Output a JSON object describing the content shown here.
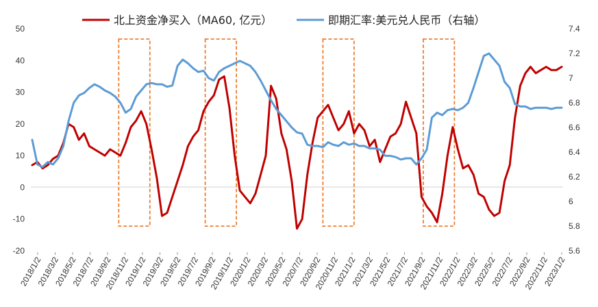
{
  "chart_data": {
    "type": "line",
    "legend": {
      "placement": "top",
      "items": [
        {
          "label": "北上资金净买入（MA60, 亿元）",
          "color": "#c00000"
        },
        {
          "label": "即期汇率:美元兑人民币（右轴）",
          "color": "#5b9bd5"
        }
      ]
    },
    "y_left": {
      "min": -20,
      "max": 50,
      "ticks": [
        "50",
        "40",
        "30",
        "20",
        "10",
        "0",
        "-10",
        "-20"
      ]
    },
    "y_right": {
      "min": 5.6,
      "max": 7.4,
      "ticks": [
        "7.4",
        "7.2",
        "7",
        "6.8",
        "6.6",
        "6.4",
        "6.2",
        "6",
        "5.8",
        "5.6"
      ]
    },
    "x_ticks": [
      "2018/1/2",
      "2018/3/2",
      "2018/5/2",
      "2018/7/2",
      "2018/9/2",
      "2018/11/2",
      "2019/1/2",
      "2019/3/2",
      "2019/5/2",
      "2019/7/2",
      "2019/9/2",
      "2019/11/2",
      "2020/1/2",
      "2020/3/2",
      "2020/5/2",
      "2020/7/2",
      "2020/9/2",
      "2020/11/2",
      "2021/1/2",
      "2021/3/2",
      "2021/5/2",
      "2021/7/2",
      "2021/9/2",
      "2021/11/2",
      "2022/1/2",
      "2022/3/2",
      "2022/5/2",
      "2022/7/2",
      "2022/9/2",
      "2022/11/2",
      "2023/1/2"
    ],
    "series": [
      {
        "name": "北上资金净买入（MA60, 亿元）",
        "axis": "left",
        "color": "#c00000",
        "x": [
          0,
          0.3,
          0.6,
          0.9,
          1.2,
          1.5,
          1.8,
          2.1,
          2.4,
          2.7,
          3.0,
          3.3,
          3.6,
          3.9,
          4.2,
          4.5,
          4.8,
          5.1,
          5.4,
          5.7,
          6.0,
          6.3,
          6.6,
          6.9,
          7.2,
          7.5,
          7.8,
          8.1,
          8.4,
          8.7,
          9.0,
          9.3,
          9.6,
          9.9,
          10.2,
          10.5,
          10.8,
          11.1,
          11.4,
          11.7,
          12.0,
          12.3,
          12.6,
          12.9,
          13.2,
          13.5,
          13.8,
          14.1,
          14.4,
          14.7,
          15.0,
          15.3,
          15.6,
          15.9,
          16.2,
          16.5,
          16.8,
          17.1,
          17.4,
          17.7,
          18.0,
          18.3,
          18.6,
          18.9,
          19.2,
          19.5,
          19.8,
          20.1,
          20.4,
          20.7,
          21.0,
          21.3,
          21.6,
          21.9,
          22.2,
          22.5,
          22.8,
          23.1,
          23.4,
          23.7,
          24.0,
          24.3,
          24.6,
          24.9,
          25.2,
          25.5,
          25.8,
          26.1,
          26.4,
          26.7,
          27.0,
          27.3,
          27.6,
          27.9,
          28.2,
          28.5,
          28.8,
          29.1,
          29.4,
          29.7,
          30.0,
          30.3,
          30.6
        ],
        "values": [
          7,
          8,
          6,
          7,
          9,
          10,
          14,
          20,
          19,
          15,
          17,
          13,
          12,
          11,
          10,
          12,
          11,
          10,
          14,
          19,
          21,
          24,
          20,
          12,
          3,
          -9,
          -8,
          -3,
          2,
          7,
          13,
          16,
          18,
          24,
          27,
          29,
          34,
          35,
          25,
          10,
          -1,
          -3,
          -5,
          -2,
          4,
          10,
          32,
          28,
          17,
          12,
          2,
          -13,
          -10,
          4,
          14,
          22,
          24,
          26,
          22,
          18,
          20,
          24,
          17,
          20,
          18,
          13,
          15,
          8,
          12,
          16,
          17,
          20,
          27,
          22,
          17,
          -3,
          -6,
          -8,
          -11,
          -2,
          10,
          19,
          12,
          6,
          7,
          4,
          -2,
          -3,
          -7,
          -9,
          -8,
          2,
          7,
          22,
          32,
          36,
          38,
          36,
          37,
          38,
          37,
          37,
          38
        ]
      },
      {
        "name": "即期汇率:美元兑人民币（右轴）",
        "axis": "right",
        "color": "#5b9bd5",
        "x": [
          0,
          0.3,
          0.6,
          0.9,
          1.2,
          1.5,
          1.8,
          2.1,
          2.4,
          2.7,
          3.0,
          3.3,
          3.6,
          3.9,
          4.2,
          4.5,
          4.8,
          5.1,
          5.4,
          5.7,
          6.0,
          6.3,
          6.6,
          6.9,
          7.2,
          7.5,
          7.8,
          8.1,
          8.4,
          8.7,
          9.0,
          9.3,
          9.6,
          9.9,
          10.2,
          10.5,
          10.8,
          11.1,
          11.4,
          11.7,
          12.0,
          12.3,
          12.6,
          12.9,
          13.2,
          13.5,
          13.8,
          14.1,
          14.4,
          14.7,
          15.0,
          15.3,
          15.6,
          15.9,
          16.2,
          16.5,
          16.8,
          17.1,
          17.4,
          17.7,
          18.0,
          18.3,
          18.6,
          18.9,
          19.2,
          19.5,
          19.8,
          20.1,
          20.4,
          20.7,
          21.0,
          21.3,
          21.6,
          21.9,
          22.2,
          22.5,
          22.8,
          23.1,
          23.4,
          23.7,
          24.0,
          24.3,
          24.6,
          24.9,
          25.2,
          25.5,
          25.8,
          26.1,
          26.4,
          26.7,
          27.0,
          27.3,
          27.6,
          27.9,
          28.2,
          28.5,
          28.8,
          29.1,
          29.4,
          29.7,
          30.0,
          30.3,
          30.6
        ],
        "values": [
          6.5,
          6.3,
          6.28,
          6.32,
          6.3,
          6.35,
          6.45,
          6.65,
          6.8,
          6.86,
          6.88,
          6.92,
          6.95,
          6.93,
          6.9,
          6.88,
          6.85,
          6.8,
          6.72,
          6.75,
          6.85,
          6.9,
          6.95,
          6.96,
          6.95,
          6.95,
          6.93,
          6.94,
          7.1,
          7.15,
          7.12,
          7.08,
          7.05,
          7.06,
          7.0,
          6.98,
          7.05,
          7.08,
          7.1,
          7.12,
          7.14,
          7.12,
          7.1,
          7.05,
          6.98,
          6.9,
          6.82,
          6.75,
          6.7,
          6.65,
          6.6,
          6.56,
          6.55,
          6.46,
          6.45,
          6.45,
          6.44,
          6.48,
          6.46,
          6.45,
          6.48,
          6.46,
          6.47,
          6.45,
          6.45,
          6.43,
          6.43,
          6.42,
          6.37,
          6.37,
          6.36,
          6.34,
          6.35,
          6.35,
          6.3,
          6.35,
          6.42,
          6.68,
          6.72,
          6.7,
          6.74,
          6.75,
          6.74,
          6.76,
          6.8,
          6.92,
          7.05,
          7.18,
          7.2,
          7.15,
          7.1,
          6.97,
          6.92,
          6.79,
          6.77,
          6.77,
          6.75,
          6.76,
          6.76,
          6.76,
          6.75,
          6.76,
          6.76
        ]
      }
    ],
    "highlight_ranges": [
      {
        "x_start": 5.0,
        "x_end": 6.8
      },
      {
        "x_start": 10.0,
        "x_end": 11.8
      },
      {
        "x_start": 16.8,
        "x_end": 18.6
      },
      {
        "x_start": 22.6,
        "x_end": 24.4
      }
    ],
    "highlight_color": "#ed7d31"
  }
}
